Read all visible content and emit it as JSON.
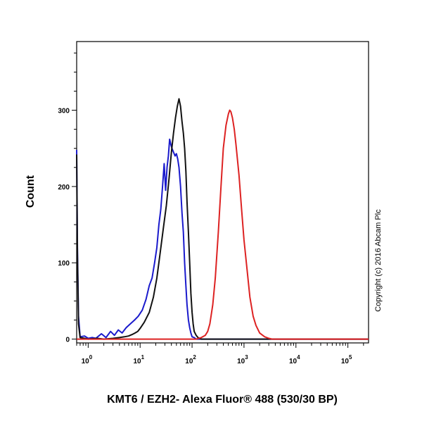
{
  "chart_data": {
    "type": "line",
    "title": "",
    "xlabel": "KMT6 / EZH2- Alexa Fluor® 488 (530/30 BP)",
    "ylabel": "Count",
    "xscale": "log",
    "xlim": [
      0.6,
      250000
    ],
    "ylim": [
      -5,
      390
    ],
    "x_ticks": [
      {
        "value": 1,
        "base": "10",
        "exp": "0"
      },
      {
        "value": 10,
        "base": "10",
        "exp": "1"
      },
      {
        "value": 100,
        "base": "10",
        "exp": "2"
      },
      {
        "value": 1000,
        "base": "10",
        "exp": "3"
      },
      {
        "value": 10000,
        "base": "10",
        "exp": "4"
      },
      {
        "value": 100000,
        "base": "10",
        "exp": "5"
      }
    ],
    "y_ticks": [
      0,
      100,
      200,
      300
    ],
    "grid": false,
    "legend": "none",
    "annotation": "Copyright (c) 2016 Abcam Plc",
    "series": [
      {
        "color": "#1a1acc",
        "x": [
          0.6,
          0.62,
          0.65,
          0.7,
          0.85,
          1.0,
          1.2,
          1.4,
          1.8,
          2.2,
          2.7,
          3.2,
          3.8,
          4.5,
          5.4,
          6.5,
          7.8,
          9.2,
          11,
          13,
          15,
          17,
          19,
          21,
          23,
          25,
          27,
          29,
          31,
          33,
          35,
          37,
          39,
          41,
          44,
          47,
          50,
          53,
          56,
          60,
          64,
          68,
          72,
          76,
          80,
          85,
          90,
          95,
          100,
          110,
          120,
          130,
          150,
          180,
          250000
        ],
        "y": [
          248,
          120,
          30,
          3,
          4,
          1,
          2,
          1,
          7,
          2,
          10,
          5,
          12,
          8,
          15,
          20,
          25,
          30,
          38,
          52,
          70,
          80,
          100,
          120,
          150,
          170,
          200,
          230,
          195,
          225,
          240,
          262,
          255,
          250,
          245,
          240,
          243,
          236,
          225,
          200,
          165,
          140,
          100,
          70,
          45,
          25,
          15,
          8,
          3,
          2,
          0,
          0,
          0,
          0,
          0
        ]
      },
      {
        "color": "#111111",
        "x": [
          0.6,
          0.62,
          0.65,
          0.7,
          0.85,
          1.0,
          1.5,
          2.0,
          3.0,
          4.0,
          5.0,
          6.0,
          7.0,
          8.0,
          9.0,
          10,
          12,
          15,
          18,
          21,
          24,
          28,
          32,
          36,
          40,
          44,
          48,
          52,
          56,
          60,
          64,
          68,
          72,
          76,
          80,
          85,
          90,
          95,
          100,
          105,
          110,
          120,
          130,
          150,
          180,
          250000
        ],
        "y": [
          242,
          110,
          20,
          2,
          1,
          0,
          1,
          0,
          1,
          2,
          3,
          4,
          6,
          8,
          10,
          14,
          22,
          35,
          55,
          80,
          110,
          145,
          175,
          210,
          245,
          270,
          290,
          305,
          315,
          305,
          285,
          270,
          250,
          220,
          180,
          140,
          100,
          60,
          35,
          20,
          10,
          5,
          2,
          0,
          0,
          0
        ]
      },
      {
        "color": "#dd2222",
        "x": [
          0.6,
          120,
          150,
          180,
          200,
          220,
          250,
          280,
          320,
          360,
          400,
          450,
          500,
          530,
          560,
          600,
          650,
          700,
          800,
          900,
          1000,
          1150,
          1300,
          1500,
          1700,
          2000,
          2500,
          3000,
          3500,
          4000,
          5000,
          250000
        ],
        "y": [
          0,
          0,
          2,
          5,
          10,
          20,
          45,
          80,
          140,
          200,
          250,
          280,
          295,
          300,
          298,
          290,
          275,
          255,
          215,
          170,
          130,
          90,
          55,
          30,
          18,
          8,
          3,
          1,
          0,
          0,
          0,
          0
        ]
      }
    ]
  }
}
